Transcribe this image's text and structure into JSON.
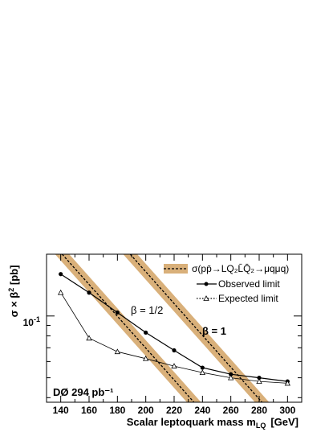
{
  "chart_data": {
    "type": "line",
    "xlabel": "Scalar leptoquark mass m",
    "xlabel_sub": "LQ",
    "xlabel_unit": "[GeV]",
    "ylabel": "σ × β² [pb]",
    "yscale": "log",
    "xlim": [
      130,
      310
    ],
    "ylim": [
      0.038,
      0.2
    ],
    "x_ticks": [
      "140",
      "160",
      "180",
      "200",
      "220",
      "240",
      "260",
      "280",
      "300"
    ],
    "y_tick_labels": [
      {
        "value": 0.1,
        "label": "10⁻¹"
      }
    ],
    "legend_position": "top-right",
    "legend": {
      "band": "σ(pp̄→LQ₂L̄Q̄₂→μqμq)",
      "observed": "Observed limit",
      "expected": "Expected limit"
    },
    "annotations": {
      "experiment": "DØ 294 pb⁻¹",
      "beta_half": "β = 1/2",
      "beta_one": "β = 1"
    },
    "series": [
      {
        "name": "Observed limit",
        "color": "#000000",
        "marker": "filled-circle",
        "x": [
          140,
          160,
          180,
          200,
          220,
          240,
          260,
          280,
          300
        ],
        "y": [
          0.16,
          0.13,
          0.104,
          0.083,
          0.068,
          0.056,
          0.052,
          0.05,
          0.048
        ]
      },
      {
        "name": "Expected limit",
        "color": "#000000",
        "marker": "open-triangle",
        "x": [
          140,
          160,
          180,
          200,
          220,
          240,
          260,
          280,
          300
        ],
        "y": [
          0.13,
          0.078,
          0.067,
          0.062,
          0.057,
          0.053,
          0.05,
          0.048,
          0.047
        ]
      }
    ],
    "theory_bands": [
      {
        "label": "β = 1/2",
        "color": "#d9b07a",
        "x": [
          141,
          234
        ],
        "y": [
          0.2,
          0.038
        ],
        "half_width_gev": 5
      },
      {
        "label": "β = 1",
        "color": "#d9b07a",
        "x": [
          189,
          282
        ],
        "y": [
          0.2,
          0.038
        ],
        "half_width_gev": 5
      }
    ]
  }
}
